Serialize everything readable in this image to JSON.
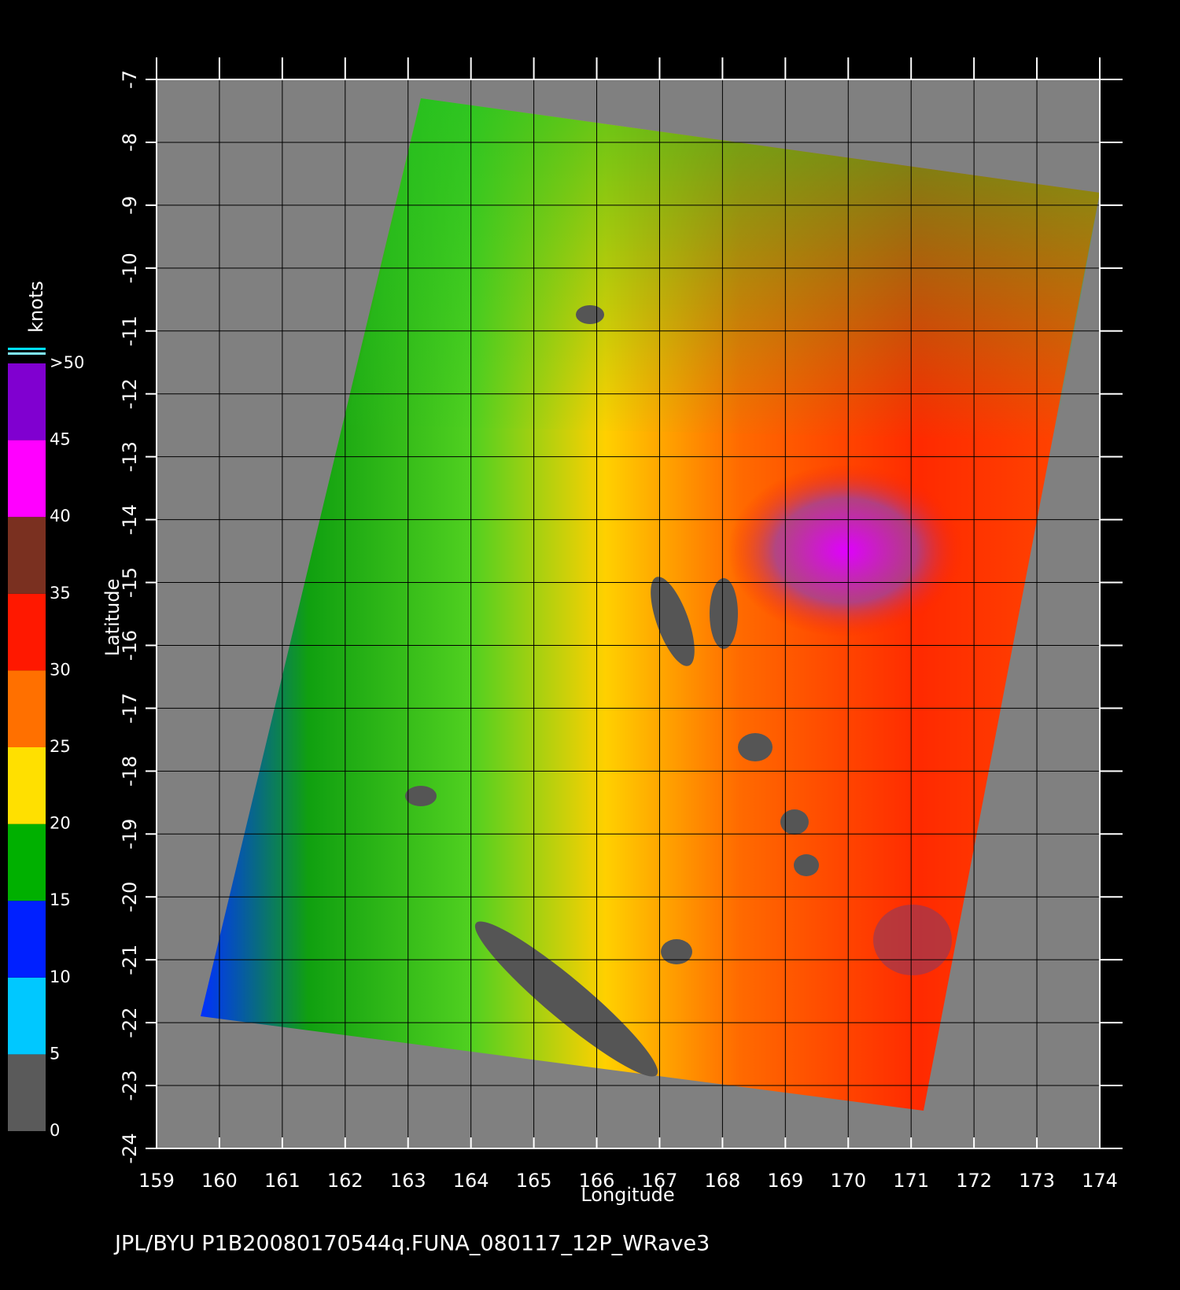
{
  "chart_data": {
    "type": "map",
    "xlabel": "Longitude",
    "ylabel": "Latitude",
    "xlim": [
      159,
      174
    ],
    "ylim": [
      -24,
      -7
    ],
    "xticks": [
      159,
      160,
      161,
      162,
      163,
      164,
      165,
      166,
      167,
      168,
      169,
      170,
      171,
      172,
      173,
      174
    ],
    "yticks": [
      -7,
      -8,
      -9,
      -10,
      -11,
      -12,
      -13,
      -14,
      -15,
      -16,
      -17,
      -18,
      -19,
      -20,
      -21,
      -22,
      -23,
      -24
    ],
    "grid": true,
    "colorbar": {
      "label": "knots",
      "lim": [
        0,
        50
      ],
      "ticks": [
        0,
        5,
        10,
        15,
        20,
        25,
        30,
        35,
        40,
        45,
        {
          "value": 50,
          "label": ">50"
        }
      ],
      "colors": [
        "#5a5a5a",
        "#00c8ff",
        "#0020ff",
        "#00b000",
        "#ffe000",
        "#ff7000",
        "#ff1800",
        "#7a3020",
        "#ff00ff",
        "#8000d0"
      ]
    },
    "caption": "JPL/BYU  P1B20080170544q.FUNA_080117_12P_WRave3"
  }
}
